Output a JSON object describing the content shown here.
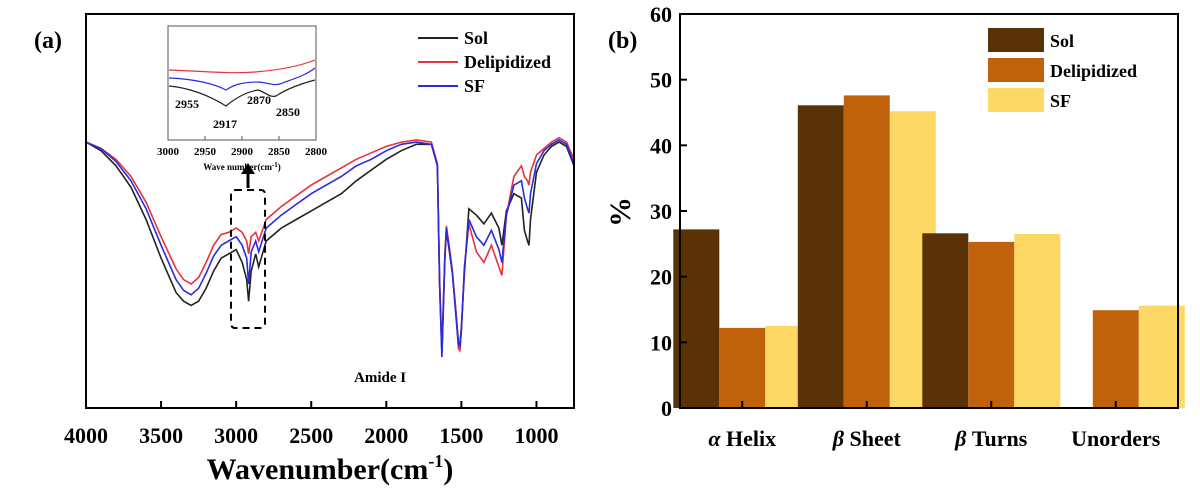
{
  "panel_a": {
    "label": "(a)",
    "annotation": "Amide I",
    "inset": {
      "xlabel": "Wave number(cm",
      "xlabel_sup": "-1",
      "xlabel_end": ")",
      "xticks": [
        "3000",
        "2950",
        "2900",
        "2850",
        "2800"
      ],
      "peaks": [
        "2955",
        "2917",
        "2870",
        "2850"
      ]
    }
  },
  "panel_b": {
    "label": "(b)"
  },
  "colors": {
    "sol_line": "#222222",
    "delip_line": "#e8323c",
    "sf_line": "#2a2ae0",
    "sol_bar": "#5a3208",
    "delip_bar": "#c0620c",
    "sf_bar": "#fdd865"
  },
  "chart_data": [
    {
      "type": "line",
      "xlabel": "Wavenumber(cm",
      "xlabel_sup": "-1",
      "xlabel_end": ")",
      "xticks": [
        4000,
        3500,
        3000,
        2500,
        2000,
        1500,
        1000
      ],
      "xlim": [
        4000,
        750
      ],
      "legend": "top-right",
      "series": [
        {
          "name": "Sol",
          "x": [
            4000,
            3900,
            3800,
            3700,
            3600,
            3500,
            3400,
            3350,
            3300,
            3250,
            3200,
            3150,
            3100,
            3050,
            3000,
            2960,
            2930,
            2917,
            2900,
            2870,
            2850,
            2800,
            2700,
            2600,
            2500,
            2400,
            2300,
            2200,
            2100,
            2000,
            1900,
            1800,
            1700,
            1660,
            1645,
            1630,
            1610,
            1600,
            1580,
            1560,
            1540,
            1520,
            1510,
            1500,
            1480,
            1450,
            1400,
            1350,
            1300,
            1250,
            1230,
            1200,
            1150,
            1100,
            1080,
            1060,
            1050,
            1040,
            1000,
            950,
            900,
            850,
            800,
            750
          ],
          "y": [
            1.06,
            1.02,
            0.95,
            0.85,
            0.7,
            0.52,
            0.36,
            0.32,
            0.3,
            0.32,
            0.38,
            0.46,
            0.52,
            0.54,
            0.56,
            0.5,
            0.42,
            0.32,
            0.46,
            0.54,
            0.48,
            0.6,
            0.66,
            0.7,
            0.74,
            0.78,
            0.82,
            0.88,
            0.93,
            0.98,
            1.02,
            1.05,
            1.05,
            0.95,
            0.4,
            0.08,
            0.52,
            0.65,
            0.55,
            0.45,
            0.3,
            0.13,
            0.12,
            0.2,
            0.45,
            0.75,
            0.72,
            0.68,
            0.73,
            0.66,
            0.58,
            0.74,
            0.82,
            0.8,
            0.65,
            0.6,
            0.58,
            0.7,
            0.92,
            1.0,
            1.04,
            1.06,
            1.04,
            0.95
          ]
        },
        {
          "name": "Delipidized",
          "x": [
            4000,
            3900,
            3800,
            3700,
            3600,
            3500,
            3400,
            3350,
            3300,
            3250,
            3200,
            3150,
            3100,
            3050,
            3000,
            2960,
            2930,
            2917,
            2900,
            2870,
            2850,
            2800,
            2700,
            2600,
            2500,
            2400,
            2300,
            2200,
            2100,
            2000,
            1900,
            1800,
            1700,
            1660,
            1645,
            1630,
            1610,
            1600,
            1580,
            1560,
            1540,
            1520,
            1510,
            1500,
            1480,
            1450,
            1400,
            1350,
            1300,
            1250,
            1230,
            1200,
            1150,
            1100,
            1080,
            1060,
            1050,
            1040,
            1000,
            950,
            900,
            850,
            800,
            750
          ],
          "y": [
            1.06,
            1.03,
            0.98,
            0.9,
            0.78,
            0.62,
            0.47,
            0.42,
            0.4,
            0.43,
            0.5,
            0.58,
            0.63,
            0.64,
            0.66,
            0.64,
            0.6,
            0.54,
            0.62,
            0.64,
            0.6,
            0.7,
            0.76,
            0.81,
            0.86,
            0.9,
            0.94,
            0.98,
            1.01,
            1.04,
            1.06,
            1.07,
            1.06,
            0.96,
            0.42,
            0.1,
            0.54,
            0.67,
            0.57,
            0.46,
            0.3,
            0.1,
            0.09,
            0.18,
            0.48,
            0.68,
            0.55,
            0.5,
            0.58,
            0.48,
            0.44,
            0.72,
            0.9,
            0.95,
            0.9,
            0.88,
            0.86,
            0.92,
            1.0,
            1.03,
            1.06,
            1.08,
            1.06,
            0.98
          ]
        },
        {
          "name": "SF",
          "x": [
            4000,
            3900,
            3800,
            3700,
            3600,
            3500,
            3400,
            3350,
            3300,
            3250,
            3200,
            3150,
            3100,
            3050,
            3000,
            2960,
            2930,
            2917,
            2900,
            2870,
            2850,
            2800,
            2700,
            2600,
            2500,
            2400,
            2300,
            2200,
            2100,
            2000,
            1900,
            1800,
            1700,
            1660,
            1645,
            1630,
            1610,
            1600,
            1580,
            1560,
            1540,
            1520,
            1510,
            1500,
            1480,
            1450,
            1400,
            1350,
            1300,
            1250,
            1230,
            1200,
            1150,
            1100,
            1080,
            1060,
            1050,
            1040,
            1000,
            950,
            900,
            850,
            800,
            750
          ],
          "y": [
            1.06,
            1.03,
            0.97,
            0.88,
            0.75,
            0.58,
            0.42,
            0.37,
            0.35,
            0.38,
            0.45,
            0.53,
            0.58,
            0.6,
            0.62,
            0.58,
            0.52,
            0.4,
            0.55,
            0.6,
            0.55,
            0.66,
            0.72,
            0.77,
            0.82,
            0.86,
            0.9,
            0.95,
            0.98,
            1.02,
            1.05,
            1.06,
            1.05,
            0.95,
            0.4,
            0.06,
            0.53,
            0.66,
            0.56,
            0.45,
            0.28,
            0.12,
            0.11,
            0.19,
            0.47,
            0.7,
            0.62,
            0.58,
            0.65,
            0.56,
            0.5,
            0.72,
            0.86,
            0.88,
            0.8,
            0.75,
            0.73,
            0.82,
            0.96,
            1.02,
            1.05,
            1.07,
            1.05,
            0.96
          ]
        }
      ]
    },
    {
      "type": "bar",
      "categories": [
        "α Helix",
        "β Sheet",
        "β Turns",
        "Unorders"
      ],
      "category_parts": [
        [
          "α",
          " Helix"
        ],
        [
          "β",
          " Sheet"
        ],
        [
          "β",
          " Turns"
        ],
        [
          "",
          "Unorders"
        ]
      ],
      "ylabel": "%",
      "ylim": [
        0,
        60
      ],
      "yticks": [
        0,
        10,
        20,
        30,
        40,
        50,
        60
      ],
      "legend": "top-right",
      "series": [
        {
          "name": "Sol",
          "values": [
            27.2,
            46.1,
            26.6,
            null
          ]
        },
        {
          "name": "Delipidized",
          "values": [
            12.2,
            47.6,
            25.3,
            14.9
          ]
        },
        {
          "name": "SF",
          "values": [
            12.5,
            45.2,
            26.5,
            15.6
          ]
        }
      ]
    }
  ]
}
